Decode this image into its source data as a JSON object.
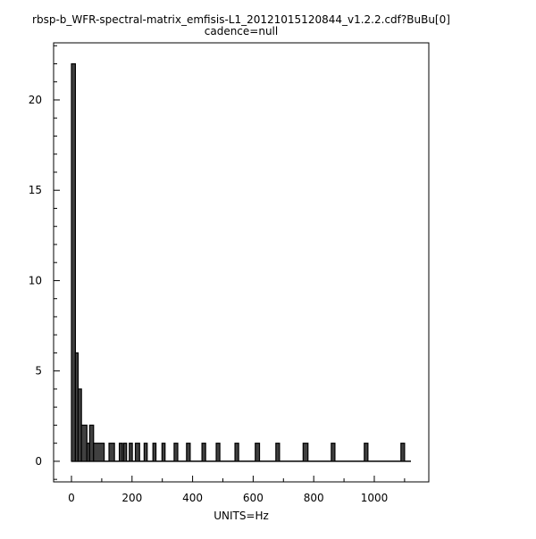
{
  "chart_data": {
    "type": "bar",
    "title": "rbsp-b_WFR-spectral-matrix_emfisis-L1_20121015120844_v1.2.2.cdf?BuBu[0]",
    "subtitle": "cadence=null",
    "xlabel": "UNITS=Hz",
    "ylabel": "",
    "xlim": [
      -59,
      1180
    ],
    "ylim": [
      -1.14,
      23.16
    ],
    "xticks": [
      0,
      200,
      400,
      600,
      800,
      1000
    ],
    "yticks": [
      0,
      5,
      10,
      15,
      20
    ],
    "grid": false,
    "bar_color": "#404040",
    "bins": [
      {
        "x0": 0,
        "x1": 13,
        "count": 22
      },
      {
        "x0": 13,
        "x1": 22,
        "count": 6
      },
      {
        "x0": 22,
        "x1": 33,
        "count": 4
      },
      {
        "x0": 33,
        "x1": 51,
        "count": 2
      },
      {
        "x0": 51,
        "x1": 60,
        "count": 1
      },
      {
        "x0": 60,
        "x1": 73,
        "count": 2
      },
      {
        "x0": 73,
        "x1": 108,
        "count": 1
      },
      {
        "x0": 124,
        "x1": 142,
        "count": 1
      },
      {
        "x0": 158,
        "x1": 168,
        "count": 1
      },
      {
        "x0": 172,
        "x1": 182,
        "count": 1
      },
      {
        "x0": 191,
        "x1": 201,
        "count": 1
      },
      {
        "x0": 211,
        "x1": 225,
        "count": 1
      },
      {
        "x0": 240,
        "x1": 250,
        "count": 1
      },
      {
        "x0": 269,
        "x1": 279,
        "count": 1
      },
      {
        "x0": 299,
        "x1": 309,
        "count": 1
      },
      {
        "x0": 339,
        "x1": 351,
        "count": 1
      },
      {
        "x0": 380,
        "x1": 392,
        "count": 1
      },
      {
        "x0": 431,
        "x1": 443,
        "count": 1
      },
      {
        "x0": 478,
        "x1": 490,
        "count": 1
      },
      {
        "x0": 540,
        "x1": 552,
        "count": 1
      },
      {
        "x0": 607,
        "x1": 621,
        "count": 1
      },
      {
        "x0": 675,
        "x1": 687,
        "count": 1
      },
      {
        "x0": 765,
        "x1": 781,
        "count": 1
      },
      {
        "x0": 858,
        "x1": 870,
        "count": 1
      },
      {
        "x0": 967,
        "x1": 979,
        "count": 1
      },
      {
        "x0": 1088,
        "x1": 1100,
        "count": 1
      }
    ],
    "baseline_end": 1121
  }
}
